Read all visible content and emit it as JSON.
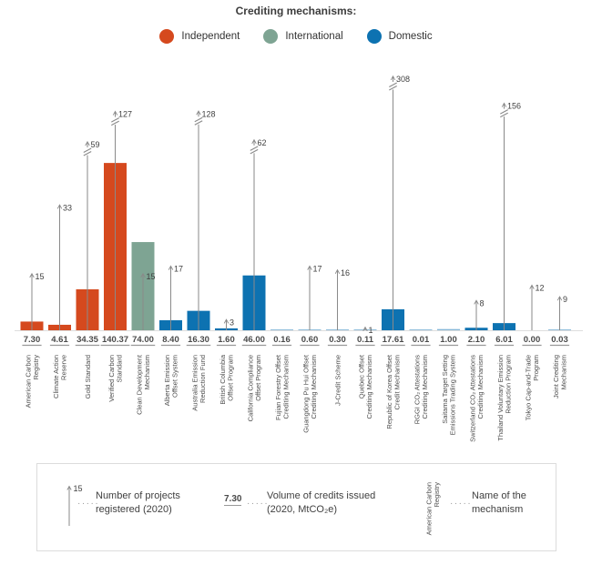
{
  "title": "Crediting mechanisms:",
  "chart_data": {
    "type": "bar",
    "title": "Crediting mechanisms:",
    "legend_position": "top",
    "volume_unit": "MtCO₂e",
    "volume_series_name": "Volume of credits issued (2020, MtCO₂e)",
    "projects_series_name": "Number of projects registered (2020)",
    "groups": [
      {
        "id": "independent",
        "label": "Independent",
        "color": "#D5491E"
      },
      {
        "id": "international",
        "label": "International",
        "color": "#7EA493"
      },
      {
        "id": "domestic",
        "label": "Domestic",
        "color": "#0D72B1"
      }
    ],
    "mechanisms": [
      {
        "name": "American Carbon Registry",
        "name_lines": [
          "American Carbon",
          "Registry"
        ],
        "group": "independent",
        "volume": 7.3,
        "volume_label": "7.30",
        "projects": 15,
        "axis_break": false
      },
      {
        "name": "Climate Action Reserve",
        "name_lines": [
          "Climate Action",
          "Reserve"
        ],
        "group": "independent",
        "volume": 4.61,
        "volume_label": "4.61",
        "projects": 33,
        "axis_break": false
      },
      {
        "name": "Gold Standard",
        "name_lines": [
          "Gold Standard"
        ],
        "group": "independent",
        "volume": 34.35,
        "volume_label": "34.35",
        "projects": 59,
        "axis_break": true
      },
      {
        "name": "Verified Carbon Standard",
        "name_lines": [
          "Verified Carbon",
          "Standard"
        ],
        "group": "independent",
        "volume": 140.37,
        "volume_label": "140.37",
        "projects": 127,
        "axis_break": true
      },
      {
        "name": "Clean Development Mechanism",
        "name_lines": [
          "Clean Development",
          "Mechanism"
        ],
        "group": "international",
        "volume": 74.0,
        "volume_label": "74.00",
        "projects": 15,
        "axis_break": false
      },
      {
        "name": "Alberta Emission Offset System",
        "name_lines": [
          "Alberta Emission",
          "Offset System"
        ],
        "group": "domestic",
        "volume": 8.4,
        "volume_label": "8.40",
        "projects": 17,
        "axis_break": false
      },
      {
        "name": "Australia Emission Reduction Fund",
        "name_lines": [
          "Australia Emission",
          "Reduction Fund"
        ],
        "group": "domestic",
        "volume": 16.3,
        "volume_label": "16.30",
        "projects": 128,
        "axis_break": true
      },
      {
        "name": "British Columbia Offset Program",
        "name_lines": [
          "British Columbia",
          "Offset Program"
        ],
        "group": "domestic",
        "volume": 1.6,
        "volume_label": "1.60",
        "projects": 3,
        "axis_break": false
      },
      {
        "name": "California Compliance Offset Program",
        "name_lines": [
          "California Compliance",
          "Offset Program"
        ],
        "group": "domestic",
        "volume": 46.0,
        "volume_label": "46.00",
        "projects": 62,
        "axis_break": true
      },
      {
        "name": "Fujian Forestry Offset Crediting Mechanism",
        "name_lines": [
          "Fujian Forestry Offset",
          "Crediting Mechanism"
        ],
        "group": "domestic",
        "volume": 0.16,
        "volume_label": "0.16",
        "projects": null,
        "axis_break": false
      },
      {
        "name": "Guangdong Pu Hui Offset Crediting Mechanism",
        "name_lines": [
          "Guangdong Pu Hui Offset",
          "Crediting Mechanism"
        ],
        "group": "domestic",
        "volume": 0.6,
        "volume_label": "0.60",
        "projects": 17,
        "axis_break": false
      },
      {
        "name": "J-Credit Scheme",
        "name_lines": [
          "J-Credit Scheme"
        ],
        "group": "domestic",
        "volume": 0.3,
        "volume_label": "0.30",
        "projects": 16,
        "axis_break": false
      },
      {
        "name": "Quebec Offset Crediting Mechanism",
        "name_lines": [
          "Quebec Offset",
          "Crediting Mechanism"
        ],
        "group": "domestic",
        "volume": 0.11,
        "volume_label": "0.11",
        "projects": 1,
        "axis_break": false
      },
      {
        "name": "Republic of Korea Offset Credit Mechanism",
        "name_lines": [
          "Republic of Korea Offset",
          "Credit Mechanism"
        ],
        "group": "domestic",
        "volume": 17.61,
        "volume_label": "17.61",
        "projects": 308,
        "axis_break": true
      },
      {
        "name": "RGGI CO₂ Attestations Crediting Mechanism",
        "name_lines": [
          "RGGI CO₂ Attestations",
          "Crediting Mechanism"
        ],
        "group": "domestic",
        "volume": 0.01,
        "volume_label": "0.01",
        "projects": null,
        "axis_break": false
      },
      {
        "name": "Saitama Target Setting Emissions Trading System",
        "name_lines": [
          "Saitama Target Setting",
          "Emissions Trading System"
        ],
        "group": "domestic",
        "volume": 1.0,
        "volume_label": "1.00",
        "projects": null,
        "axis_break": false
      },
      {
        "name": "Switzerland CO₂ Attestations Crediting Mechanism",
        "name_lines": [
          "Switzerland CO₂ Attestations",
          "Crediting Mechanism"
        ],
        "group": "domestic",
        "volume": 2.1,
        "volume_label": "2.10",
        "projects": 8,
        "axis_break": false
      },
      {
        "name": "Thailand Voluntary Emission Reduction Program",
        "name_lines": [
          "Thailand Voluntary Emission",
          "Reduction Program"
        ],
        "group": "domestic",
        "volume": 6.01,
        "volume_label": "6.01",
        "projects": 156,
        "axis_break": true
      },
      {
        "name": "Tokyo Cap-and-Trade Program",
        "name_lines": [
          "Tokyo Cap-and-Trade",
          "Program"
        ],
        "group": "domestic",
        "volume": 0.0,
        "volume_label": "0.00",
        "projects": 12,
        "axis_break": false
      },
      {
        "name": "Joint Crediting Mechanism",
        "name_lines": [
          "Joint Crediting",
          "Mechanism"
        ],
        "group": "domestic",
        "volume": 0.03,
        "volume_label": "0.03",
        "projects": 9,
        "axis_break": false
      }
    ]
  },
  "key_box": {
    "projects_example": "15",
    "projects_text": [
      "Number of projects",
      "registered (2020)"
    ],
    "volume_example": "7.30",
    "volume_text": [
      "Volume of credits issued",
      "(2020, MtCO₂e)"
    ],
    "name_example_lines": [
      "American Carbon",
      "Registry"
    ],
    "name_text": [
      "Name of the",
      "mechanism"
    ],
    "leader_dots": "·····"
  }
}
